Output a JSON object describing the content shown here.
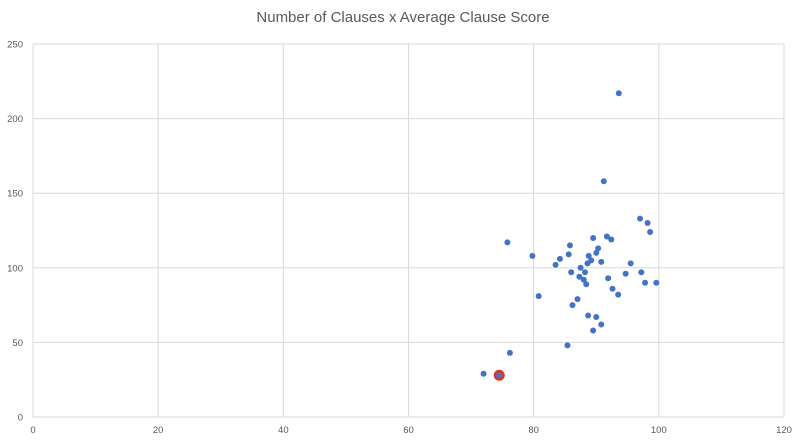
{
  "chart_data": {
    "type": "scatter",
    "title": "Number of Clauses x Average Clause Score",
    "xlabel": "",
    "ylabel": "",
    "xlim": [
      0,
      120
    ],
    "ylim": [
      0,
      250
    ],
    "x_ticks": [
      0,
      20,
      40,
      60,
      80,
      100,
      120
    ],
    "y_ticks": [
      0,
      50,
      100,
      150,
      200,
      250
    ],
    "grid": true,
    "legend": "none",
    "colors": {
      "point": "#4472C4",
      "highlight_ring": "#E0312A",
      "grid": "#D9D9D9",
      "axis_text": "#595959"
    },
    "series": [
      {
        "points": [
          [
            72,
            29
          ],
          [
            76.2,
            43
          ],
          [
            75.8,
            117
          ],
          [
            79.8,
            108
          ],
          [
            80.8,
            81
          ],
          [
            83.5,
            102
          ],
          [
            84.2,
            106
          ],
          [
            85.4,
            48
          ],
          [
            85.6,
            109
          ],
          [
            85.8,
            115
          ],
          [
            86,
            97
          ],
          [
            86.2,
            75
          ],
          [
            87,
            79
          ],
          [
            87.3,
            94
          ],
          [
            87.5,
            100
          ],
          [
            88,
            92
          ],
          [
            88.2,
            97
          ],
          [
            88.4,
            89
          ],
          [
            88.6,
            103
          ],
          [
            88.8,
            108
          ],
          [
            88.7,
            68
          ],
          [
            89.2,
            105
          ],
          [
            89.5,
            120
          ],
          [
            89.5,
            58
          ],
          [
            90,
            67
          ],
          [
            90,
            110
          ],
          [
            90.3,
            113
          ],
          [
            90.8,
            62
          ],
          [
            90.8,
            104
          ],
          [
            91.2,
            158
          ],
          [
            91.7,
            121
          ],
          [
            91.9,
            93
          ],
          [
            92.4,
            119
          ],
          [
            92.6,
            86
          ],
          [
            93.5,
            82
          ],
          [
            93.6,
            217
          ],
          [
            94.7,
            96
          ],
          [
            95.5,
            103
          ],
          [
            97,
            133
          ],
          [
            97.2,
            97
          ],
          [
            97.8,
            90
          ],
          [
            98.2,
            130
          ],
          [
            98.6,
            124
          ],
          [
            99.6,
            90
          ]
        ]
      }
    ],
    "highlighted_points": [
      [
        74.5,
        28
      ]
    ]
  }
}
